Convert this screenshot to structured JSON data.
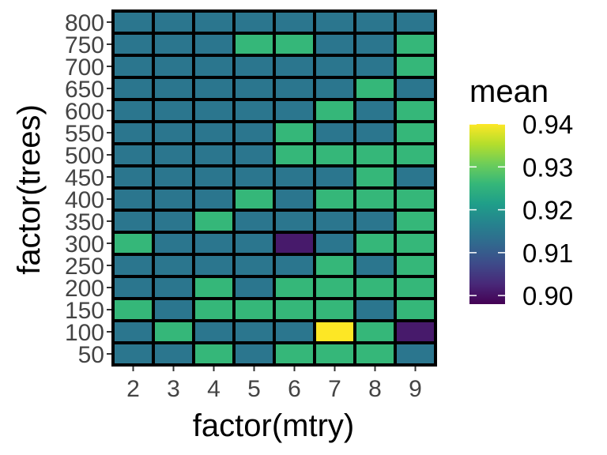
{
  "chart_data": {
    "type": "heatmap",
    "title": "",
    "xlabel": "factor(mtry)",
    "ylabel": "factor(trees)",
    "x": [
      "2",
      "3",
      "4",
      "5",
      "6",
      "7",
      "8",
      "9"
    ],
    "y": [
      "50",
      "100",
      "150",
      "200",
      "250",
      "300",
      "350",
      "400",
      "450",
      "500",
      "550",
      "600",
      "650",
      "700",
      "750",
      "800"
    ],
    "values": [
      [
        0.9145,
        0.9145,
        0.926,
        0.9145,
        0.926,
        0.926,
        0.926,
        0.9145
      ],
      [
        0.9145,
        0.926,
        0.9145,
        0.9145,
        0.9145,
        0.94,
        0.926,
        0.901
      ],
      [
        0.926,
        0.9145,
        0.926,
        0.926,
        0.926,
        0.926,
        0.9145,
        0.926
      ],
      [
        0.9145,
        0.9145,
        0.926,
        0.9145,
        0.926,
        0.926,
        0.926,
        0.926
      ],
      [
        0.9145,
        0.9145,
        0.9145,
        0.9145,
        0.9145,
        0.926,
        0.9145,
        0.926
      ],
      [
        0.926,
        0.9145,
        0.9145,
        0.9145,
        0.901,
        0.9145,
        0.926,
        0.926
      ],
      [
        0.9145,
        0.9145,
        0.926,
        0.9145,
        0.9145,
        0.9145,
        0.9145,
        0.926
      ],
      [
        0.9145,
        0.9145,
        0.9145,
        0.926,
        0.9145,
        0.926,
        0.926,
        0.926
      ],
      [
        0.9145,
        0.9145,
        0.9145,
        0.9145,
        0.9145,
        0.9145,
        0.926,
        0.9145
      ],
      [
        0.9145,
        0.9145,
        0.9145,
        0.9145,
        0.926,
        0.926,
        0.926,
        0.926
      ],
      [
        0.9145,
        0.9145,
        0.9145,
        0.9145,
        0.926,
        0.9145,
        0.9145,
        0.926
      ],
      [
        0.9145,
        0.9145,
        0.9145,
        0.9145,
        0.9145,
        0.926,
        0.9145,
        0.926
      ],
      [
        0.9145,
        0.9145,
        0.9145,
        0.9145,
        0.9145,
        0.9145,
        0.926,
        0.9145
      ],
      [
        0.9145,
        0.9145,
        0.9145,
        0.9145,
        0.9145,
        0.9145,
        0.9145,
        0.926
      ],
      [
        0.9145,
        0.9145,
        0.9145,
        0.926,
        0.926,
        0.9145,
        0.9145,
        0.926
      ],
      [
        0.9145,
        0.9145,
        0.9145,
        0.9145,
        0.9145,
        0.9145,
        0.9145,
        0.9145
      ]
    ],
    "legend": {
      "title": "mean",
      "breaks": [
        0.94,
        0.93,
        0.92,
        0.91,
        0.9
      ],
      "labels": [
        "0.94",
        "0.93",
        "0.92",
        "0.91",
        "0.90"
      ],
      "limits": [
        0.898,
        0.94
      ],
      "placement": "right"
    },
    "colorscale": "viridis",
    "colors": {
      "viridis": [
        "#440154",
        "#482878",
        "#3E4A89",
        "#31688E",
        "#26828E",
        "#1F9E89",
        "#35B779",
        "#6DCD59",
        "#B4DE2C",
        "#FDE725"
      ],
      "cell_border": "#000000",
      "tick_text": "#444444"
    },
    "grid": false
  }
}
